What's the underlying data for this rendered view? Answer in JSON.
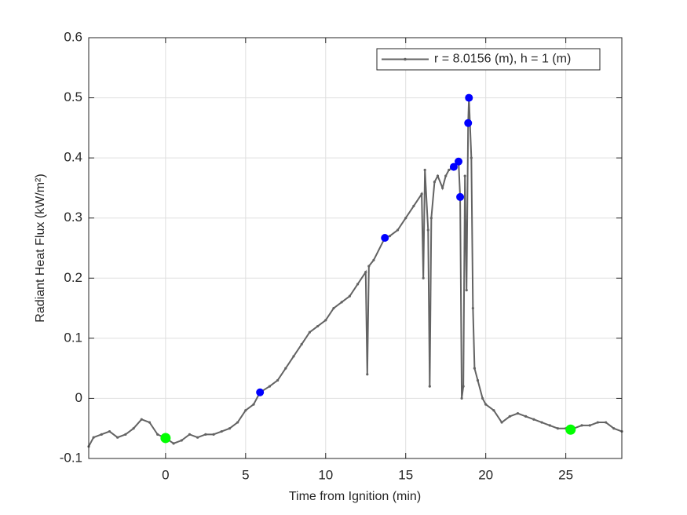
{
  "chart_data": {
    "type": "line",
    "xlabel": "Time from Ignition (min)",
    "ylabel": "Radiant Heat Flux (kW/m²)",
    "xlim": [
      -4.8,
      28.5
    ],
    "ylim": [
      -0.1,
      0.6
    ],
    "xticks": [
      0,
      5,
      10,
      15,
      20,
      25
    ],
    "yticks": [
      -0.1,
      0,
      0.1,
      0.2,
      0.3,
      0.4,
      0.5,
      0.6
    ],
    "grid": true,
    "legend_location": "northeast",
    "series": [
      {
        "name": "r = 8.0156 (m), h = 1 (m)",
        "color": "#636363",
        "x": [
          -4.8,
          -4.5,
          -4,
          -3.5,
          -3,
          -2.5,
          -2,
          -1.5,
          -1,
          -0.5,
          0,
          0.5,
          1,
          1.5,
          2,
          2.5,
          3,
          3.5,
          4,
          4.5,
          5,
          5.5,
          5.9,
          6.5,
          7,
          7.5,
          8,
          8.5,
          9,
          9.5,
          10,
          10.5,
          11,
          11.5,
          12,
          12.5,
          12.6,
          12.7,
          13,
          13.7,
          14,
          14.5,
          15,
          15.5,
          16,
          16.1,
          16.2,
          16.4,
          16.5,
          16.6,
          16.8,
          17,
          17.3,
          17.5,
          17.7,
          18,
          18.3,
          18.4,
          18.5,
          18.6,
          18.7,
          18.8,
          18.9,
          18.95,
          19.1,
          19.2,
          19.3,
          19.5,
          19.8,
          20,
          20.5,
          21,
          21.5,
          22,
          22.5,
          23,
          23.5,
          24,
          24.5,
          25,
          25.3,
          25.5,
          26,
          26.5,
          27,
          27.5,
          28,
          28.5
        ],
        "values": [
          -0.08,
          -0.065,
          -0.06,
          -0.055,
          -0.065,
          -0.06,
          -0.05,
          -0.035,
          -0.04,
          -0.06,
          -0.066,
          -0.075,
          -0.07,
          -0.06,
          -0.065,
          -0.06,
          -0.06,
          -0.055,
          -0.05,
          -0.04,
          -0.02,
          -0.01,
          0.01,
          0.02,
          0.03,
          0.05,
          0.07,
          0.09,
          0.11,
          0.12,
          0.13,
          0.15,
          0.16,
          0.17,
          0.19,
          0.21,
          0.04,
          0.22,
          0.23,
          0.267,
          0.27,
          0.28,
          0.3,
          0.32,
          0.34,
          0.2,
          0.38,
          0.28,
          0.02,
          0.3,
          0.36,
          0.37,
          0.35,
          0.37,
          0.38,
          0.385,
          0.395,
          0.335,
          0.0,
          0.02,
          0.37,
          0.18,
          0.458,
          0.5,
          0.4,
          0.15,
          0.05,
          0.03,
          0.0,
          -0.01,
          -0.02,
          -0.04,
          -0.03,
          -0.025,
          -0.03,
          -0.035,
          -0.04,
          -0.045,
          -0.05,
          -0.05,
          -0.052,
          -0.05,
          -0.045,
          -0.045,
          -0.04,
          -0.04,
          -0.05,
          -0.055
        ]
      }
    ],
    "highlight_blue": {
      "color": "#0000ff",
      "x": [
        5.9,
        13.7,
        18.0,
        18.3,
        18.4,
        18.9,
        18.95
      ],
      "values": [
        0.01,
        0.267,
        0.385,
        0.394,
        0.335,
        0.458,
        0.5
      ]
    },
    "highlight_green": {
      "color": "#00ff00",
      "x": [
        0,
        25.3
      ],
      "values": [
        -0.066,
        -0.052
      ]
    }
  }
}
